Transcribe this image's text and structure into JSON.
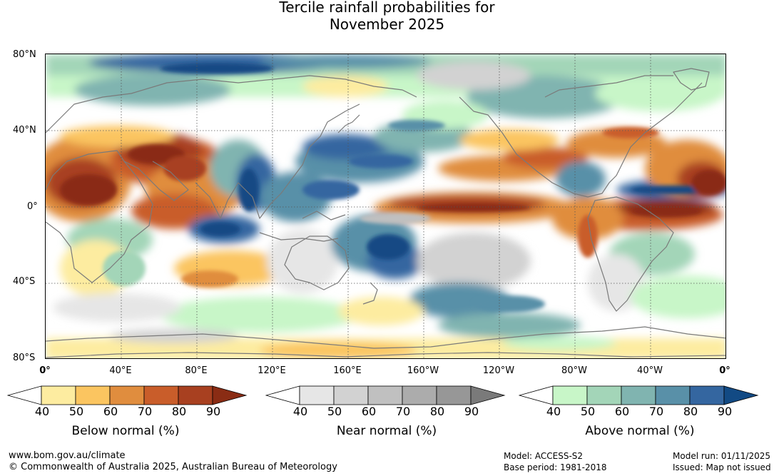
{
  "title": {
    "line1": "Tercile rainfall probabilities for",
    "line2": "November 2025"
  },
  "map": {
    "lat_labels": [
      "80°N",
      "40°N",
      "0°",
      "40°S",
      "80°S"
    ],
    "lon_labels": [
      "0°",
      "40°E",
      "80°E",
      "120°E",
      "160°E",
      "160°W",
      "120°W",
      "80°W",
      "40°W",
      "0°"
    ],
    "ocean_color": "#ffffff",
    "coastline_color": "#7a7a7a",
    "gridline_style": "dotted"
  },
  "legends": [
    {
      "caption": "Below normal (%)",
      "ticks": [
        "40",
        "50",
        "60",
        "70",
        "80",
        "90"
      ],
      "colors": [
        "#ffffff",
        "#fdeca0",
        "#fbc560",
        "#e08d3e",
        "#c95d2a",
        "#a84020",
        "#8a2c14"
      ]
    },
    {
      "caption": "Near normal (%)",
      "ticks": [
        "40",
        "50",
        "60",
        "70",
        "80",
        "90"
      ],
      "colors": [
        "#ffffff",
        "#e6e6e6",
        "#d2d2d2",
        "#c0c0c0",
        "#acacac",
        "#979797",
        "#7a7a7a"
      ]
    },
    {
      "caption": "Above normal (%)",
      "ticks": [
        "40",
        "50",
        "60",
        "70",
        "80",
        "90"
      ],
      "colors": [
        "#ffffff",
        "#c8f6c8",
        "#a3d5b8",
        "#80b4b0",
        "#5990a8",
        "#3466a0",
        "#124a84"
      ]
    }
  ],
  "footer": {
    "website": "www.bom.gov.au/climate",
    "copyright": "© Commonwealth of Australia 2025, Australian Bureau of Meteorology",
    "model": "Model: ACCESS-S2",
    "base_period": "Base period: 1981-2018",
    "model_run": "Model run: 01/11/2025",
    "issued": "Issued: Map not issued"
  }
}
